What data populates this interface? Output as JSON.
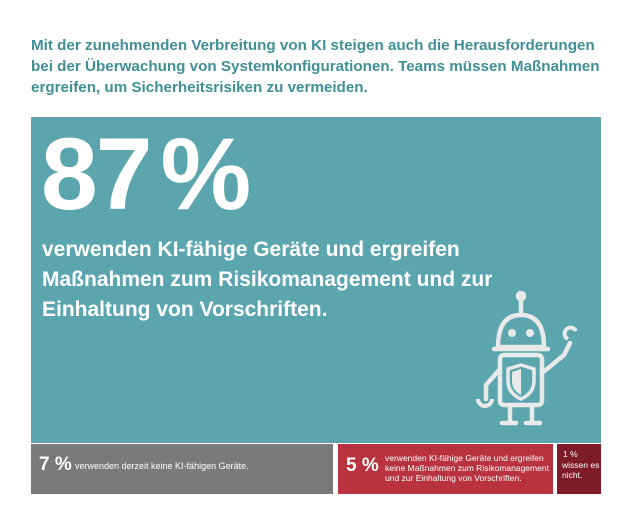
{
  "intro": "Mit der zunehmenden Verbreitung von KI steigen auch die Herausforderungen bei der Überwachung von Systemkonfigurationen. Teams müssen Maßnahmen ergreifen, um Sicherheitsrisiken zu vermeiden.",
  "hero": {
    "number": "87",
    "percent_sign": "%",
    "value_percent": 87,
    "text": "verwenden KI-fähige Geräte und ergreifen Maßnahmen zum Risikomanagement und zur Einhaltung von Vorschriften."
  },
  "bars": [
    {
      "percent": "7 %",
      "value_percent": 7,
      "text": "verwenden derzeit keine KI-fähigen Geräte."
    },
    {
      "percent": "5 %",
      "value_percent": 5,
      "text": "verwenden KI-fähige Geräte und ergreifen keine Maßnahmen zum Risikomanagement und zur Einhal­tung von Vorschriften."
    },
    {
      "percent": "1 %",
      "value_percent": 1,
      "text": "wissen es nicht."
    }
  ],
  "colors": {
    "teal_text": "#3f8f96",
    "teal_panel": "#5ba5ae",
    "gray": "#7b7a7a",
    "red": "#b8323f",
    "dark_red": "#7d1c28"
  },
  "icons": {
    "robot": "robot-with-shield-icon"
  }
}
